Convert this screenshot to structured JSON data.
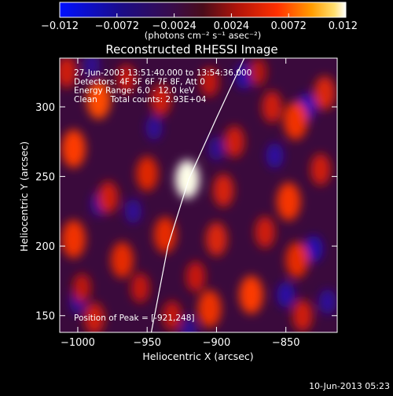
{
  "chart_data": {
    "type": "heatmap",
    "title": "Reconstructed RHESSI Image",
    "xlabel": "Heliocentric X (arcsec)",
    "ylabel": "Heliocentric Y (arcsec)",
    "xlim": [
      -1013,
      -813
    ],
    "ylim": [
      138,
      335
    ],
    "xticks": [
      -1000,
      -950,
      -900,
      -850
    ],
    "xtick_labels": [
      "−1000",
      "−950",
      "−900",
      "−850"
    ],
    "yticks": [
      150,
      200,
      250,
      300
    ],
    "ytick_labels": [
      "150",
      "200",
      "250",
      "300"
    ],
    "colormap": "blue-purple-red-yellow-white",
    "colorbar": {
      "min": -0.012,
      "max": 0.012,
      "ticks": [
        -0.012,
        -0.0072,
        -0.0024,
        0.0024,
        0.0072,
        0.012
      ],
      "tick_labels": [
        "−0.012",
        "−0.0072",
        "−0.0024",
        "0.0024",
        "0.0072",
        "0.012"
      ],
      "unit_label": "(photons cm⁻² s⁻¹ asec⁻²)"
    },
    "annotations": [
      "27-Jun-2003 13:51:40.000 to 13:54:36.000",
      "Detectors: 4F 5F 6F 7F 8F, Att 0",
      "Energy Range: 6.0 - 12.0 keV",
      "Clean     Total counts: 2.93E+04"
    ],
    "peak_label": "Position of Peak = [-921,248]",
    "peak": {
      "x": -921,
      "y": 248,
      "value": 0.012
    },
    "limb_curve": [
      [
        -880,
        335
      ],
      [
        -900,
        292
      ],
      [
        -920,
        248
      ],
      [
        -935,
        200
      ],
      [
        -947,
        138
      ]
    ],
    "sources": [
      {
        "x": -921,
        "y": 248,
        "value": 0.012
      },
      {
        "x": -950,
        "y": 252,
        "value": 0.0052
      },
      {
        "x": -985,
        "y": 305,
        "value": 0.007
      },
      {
        "x": -1003,
        "y": 270,
        "value": 0.0065
      },
      {
        "x": -1003,
        "y": 205,
        "value": 0.006
      },
      {
        "x": -968,
        "y": 190,
        "value": 0.0055
      },
      {
        "x": -937,
        "y": 208,
        "value": 0.0055
      },
      {
        "x": -900,
        "y": 205,
        "value": 0.005
      },
      {
        "x": -875,
        "y": 165,
        "value": 0.0065
      },
      {
        "x": -848,
        "y": 232,
        "value": 0.0062
      },
      {
        "x": -843,
        "y": 290,
        "value": 0.006
      },
      {
        "x": -860,
        "y": 300,
        "value": 0.0045
      },
      {
        "x": -822,
        "y": 310,
        "value": 0.005
      },
      {
        "x": -905,
        "y": 155,
        "value": 0.0058
      },
      {
        "x": -988,
        "y": 148,
        "value": 0.0045
      },
      {
        "x": -932,
        "y": 150,
        "value": 0.004
      },
      {
        "x": -940,
        "y": 305,
        "value": 0.0045
      },
      {
        "x": -905,
        "y": 318,
        "value": 0.004
      },
      {
        "x": -842,
        "y": 190,
        "value": 0.0055
      },
      {
        "x": -887,
        "y": 275,
        "value": 0.0045
      },
      {
        "x": -955,
        "y": 170,
        "value": 0.004
      },
      {
        "x": -1008,
        "y": 325,
        "value": 0.0045
      },
      {
        "x": -978,
        "y": 235,
        "value": 0.0045
      },
      {
        "x": -838,
        "y": 150,
        "value": 0.0045
      },
      {
        "x": -915,
        "y": 178,
        "value": 0.0042
      },
      {
        "x": -825,
        "y": 255,
        "value": 0.0045
      },
      {
        "x": -965,
        "y": 320,
        "value": 0.004
      },
      {
        "x": -895,
        "y": 240,
        "value": 0.0048
      },
      {
        "x": -865,
        "y": 210,
        "value": 0.0045
      },
      {
        "x": -997,
        "y": 170,
        "value": 0.0038
      },
      {
        "x": -870,
        "y": 325,
        "value": 0.0035
      }
    ],
    "dark_spots": [
      {
        "x": -835,
        "y": 300,
        "value": -0.0065
      },
      {
        "x": -830,
        "y": 198,
        "value": -0.006
      },
      {
        "x": -880,
        "y": 322,
        "value": -0.005
      },
      {
        "x": -858,
        "y": 265,
        "value": -0.0045
      },
      {
        "x": -960,
        "y": 225,
        "value": -0.0035
      },
      {
        "x": -850,
        "y": 165,
        "value": -0.005
      },
      {
        "x": -985,
        "y": 230,
        "value": -0.003
      },
      {
        "x": -1000,
        "y": 160,
        "value": -0.0035
      },
      {
        "x": -920,
        "y": 140,
        "value": -0.003
      },
      {
        "x": -990,
        "y": 330,
        "value": -0.003
      },
      {
        "x": -900,
        "y": 270,
        "value": -0.003
      },
      {
        "x": -820,
        "y": 160,
        "value": -0.004
      },
      {
        "x": -945,
        "y": 285,
        "value": -0.0035
      }
    ]
  },
  "footer": {
    "timestamp": "10-Jun-2013 05:23"
  }
}
